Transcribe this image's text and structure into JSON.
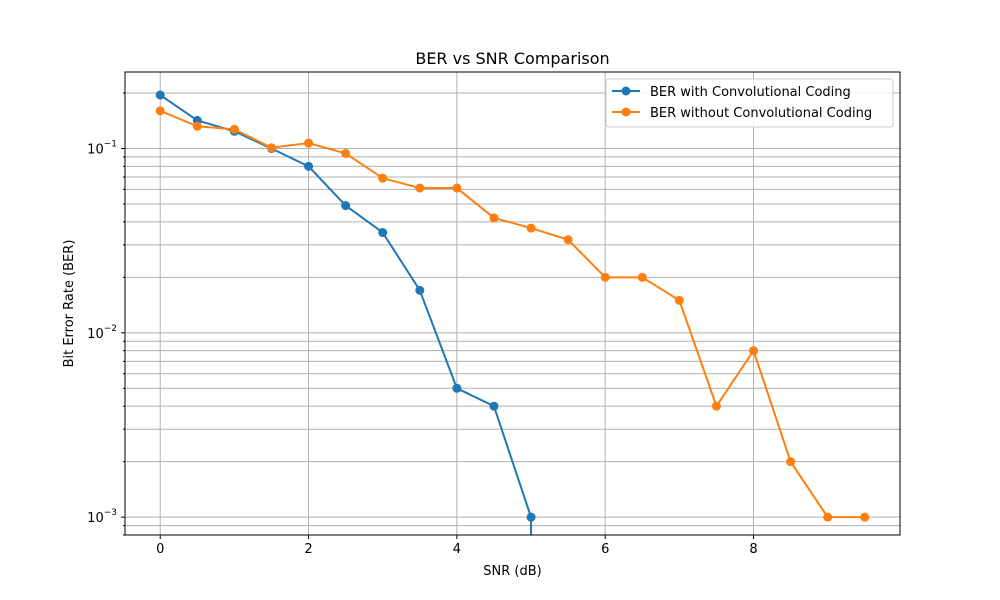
{
  "chart_data": {
    "type": "line",
    "title": "BER vs SNR Comparison",
    "xlabel": "SNR (dB)",
    "ylabel": "Bit Error Rate (BER)",
    "xlim": [
      -0.475,
      9.975
    ],
    "ylim": [
      0.0008,
      0.26
    ],
    "yscale": "log",
    "grid": true,
    "legend_position": "top-right",
    "xticks": [
      0,
      2,
      4,
      6,
      8
    ],
    "xtick_labels": [
      "0",
      "2",
      "4",
      "6",
      "8"
    ],
    "yticks": [
      0.001,
      0.01,
      0.1
    ],
    "ytick_labels": [
      {
        "base": "10",
        "exp": "−3"
      },
      {
        "base": "10",
        "exp": "−2"
      },
      {
        "base": "10",
        "exp": "−1"
      }
    ],
    "series": [
      {
        "name": "BER with Convolutional Coding",
        "color": "#1f77b4",
        "x": [
          0,
          0.5,
          1,
          1.5,
          2,
          2.5,
          3,
          3.5,
          4,
          4.5,
          5
        ],
        "y": [
          0.195,
          0.142,
          0.124,
          0.1,
          0.08,
          0.049,
          0.035,
          0.017,
          0.005,
          0.004,
          0.001
        ]
      },
      {
        "name": "BER without Convolutional Coding",
        "color": "#ff7f0e",
        "x": [
          0,
          0.5,
          1,
          1.5,
          2,
          2.5,
          3,
          3.5,
          4,
          4.5,
          5,
          5.5,
          6,
          6.5,
          7,
          7.5,
          8,
          8.5,
          9,
          9.5
        ],
        "y": [
          0.16,
          0.132,
          0.127,
          0.101,
          0.107,
          0.094,
          0.069,
          0.061,
          0.061,
          0.042,
          0.037,
          0.032,
          0.02,
          0.02,
          0.015,
          0.004,
          0.008,
          0.002,
          0.001,
          0.001
        ]
      }
    ]
  }
}
